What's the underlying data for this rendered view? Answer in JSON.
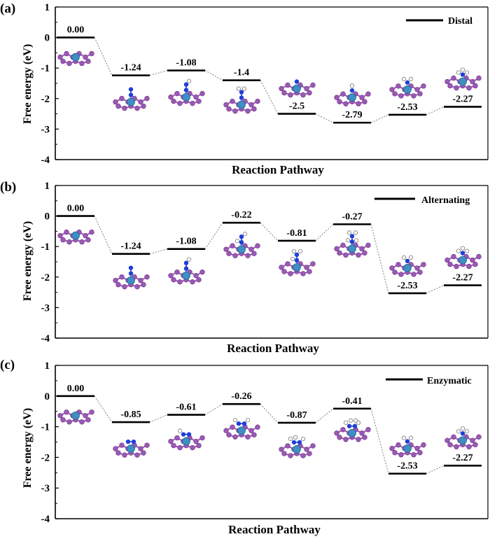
{
  "colors": {
    "axis": "#000000",
    "level": "#000000",
    "connector": "#8a8a8a",
    "pd_atom": "#9b59b6",
    "metal_atom": "#3d8fc4",
    "n_atom": "#1f3fd6",
    "h_atom": "#ffffff"
  },
  "chart_data": [
    {
      "panel_label": "(a)",
      "type": "energy_level_diagram",
      "legend": "Distal",
      "legend_position": "top-right",
      "xlabel": "Reaction Pathway",
      "ylabel": "Free energy (eV)",
      "ylim": [
        -4,
        1
      ],
      "yticks": [
        "1",
        "0",
        "-1",
        "-2",
        "-3",
        "-4"
      ],
      "levels": [
        "0.00",
        "-1.24",
        "-1.08",
        "-1.4",
        "-2.5",
        "-2.79",
        "-2.53",
        "-2.27"
      ],
      "values": [
        0.0,
        -1.24,
        -1.08,
        -1.4,
        -2.5,
        -2.79,
        -2.53,
        -2.27
      ],
      "adsorbates": [
        "none",
        "N2",
        "NNH",
        "NNH2",
        "N",
        "NH",
        "NH2",
        "NH3"
      ]
    },
    {
      "panel_label": "(b)",
      "type": "energy_level_diagram",
      "legend": "Alternating",
      "legend_position": "top-right",
      "xlabel": "Reaction Pathway",
      "ylabel": "Free energy (eV)",
      "ylim": [
        -4,
        1
      ],
      "yticks": [
        "1",
        "0",
        "-1",
        "-2",
        "-3",
        "-4"
      ],
      "levels": [
        "0.00",
        "-1.24",
        "-1.08",
        "-0.22",
        "-0.81",
        "-0.27",
        "-2.53",
        "-2.27"
      ],
      "values": [
        0.0,
        -1.24,
        -1.08,
        -0.22,
        -0.81,
        -0.27,
        -2.53,
        -2.27
      ],
      "adsorbates": [
        "none",
        "N2",
        "NNH",
        "NHNH",
        "NHNH2",
        "NH2NH2",
        "NH2",
        "NH3"
      ]
    },
    {
      "panel_label": "(c)",
      "type": "energy_level_diagram",
      "legend": "Enzymatic",
      "legend_position": "top-right",
      "xlabel": "Reaction Pathway",
      "ylabel": "Free energy (eV)",
      "ylim": [
        -4,
        1
      ],
      "yticks": [
        "1",
        "0",
        "-1",
        "-2",
        "-3",
        "-4"
      ],
      "levels": [
        "0.00",
        "-0.85",
        "-0.61",
        "-0.26",
        "-0.87",
        "-0.41",
        "-2.53",
        "-2.27"
      ],
      "values": [
        0.0,
        -0.85,
        -0.61,
        -0.26,
        -0.87,
        -0.41,
        -2.53,
        -2.27
      ],
      "adsorbates": [
        "none",
        "N2side",
        "N2H",
        "N2H2",
        "N2H3",
        "N2H4",
        "NH2",
        "NH3"
      ]
    }
  ]
}
